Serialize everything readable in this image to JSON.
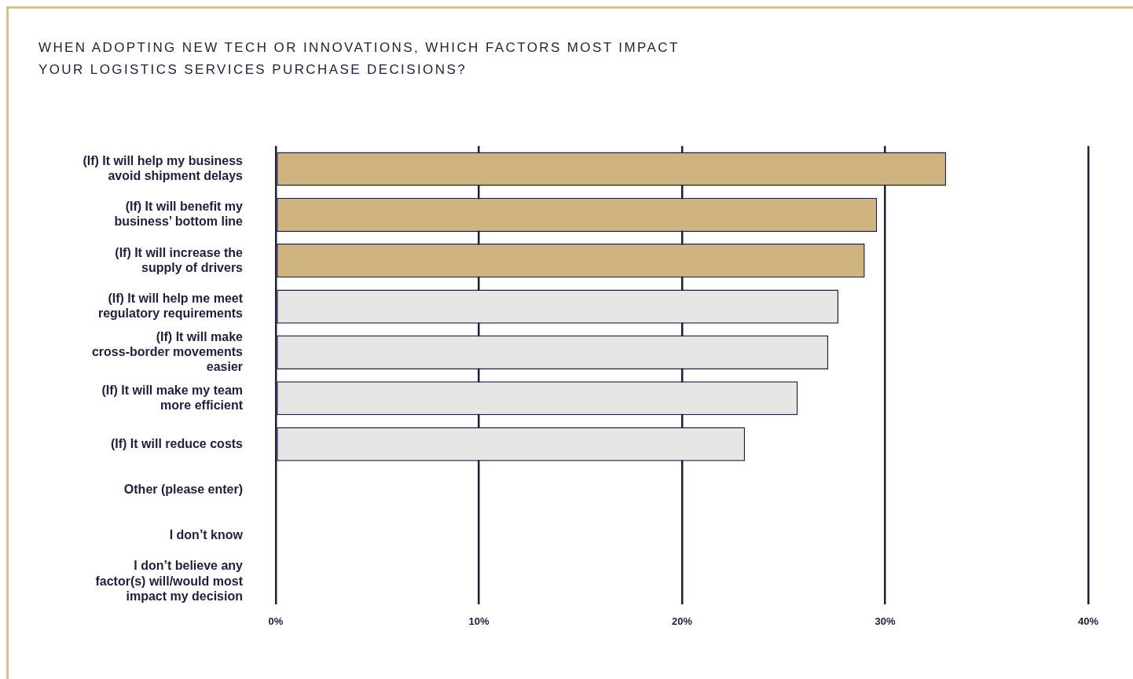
{
  "chart_data": {
    "type": "bar",
    "orientation": "horizontal",
    "title": "WHEN ADOPTING NEW TECH OR INNOVATIONS, WHICH FACTORS MOST IMPACT YOUR LOGISTICS SERVICES PURCHASE DECISIONS?",
    "categories": [
      "(If) It will help my business avoid shipment delays",
      "(If) It will benefit my business’ bottom line",
      "(If) It will increase the supply of drivers",
      "(If) It will help me meet regulatory requirements",
      "(If) It will make cross-border movements easier",
      "(If) It will make my team more efficient",
      "(If) It will reduce costs",
      "Other (please enter)",
      "I don’t know",
      "I don’t believe any factor(s) will/would most impact my decision"
    ],
    "values": [
      33.0,
      29.6,
      29.0,
      27.7,
      27.2,
      25.7,
      23.1,
      0,
      0,
      0
    ],
    "colors": [
      "#cfb47f",
      "#cfb47f",
      "#cfb47f",
      "#e6e6e4",
      "#e6e6e4",
      "#e6e6e4",
      "#e6e6e4",
      "#e6e6e4",
      "#e6e6e4",
      "#e6e6e4"
    ],
    "xlim": [
      0,
      40
    ],
    "xticks": [
      {
        "value": 0,
        "label": "0%"
      },
      {
        "value": 10,
        "label": "10%"
      },
      {
        "value": 20,
        "label": "20%"
      },
      {
        "value": 30,
        "label": "30%"
      },
      {
        "value": 40,
        "label": "40%"
      }
    ],
    "grid": "x"
  }
}
